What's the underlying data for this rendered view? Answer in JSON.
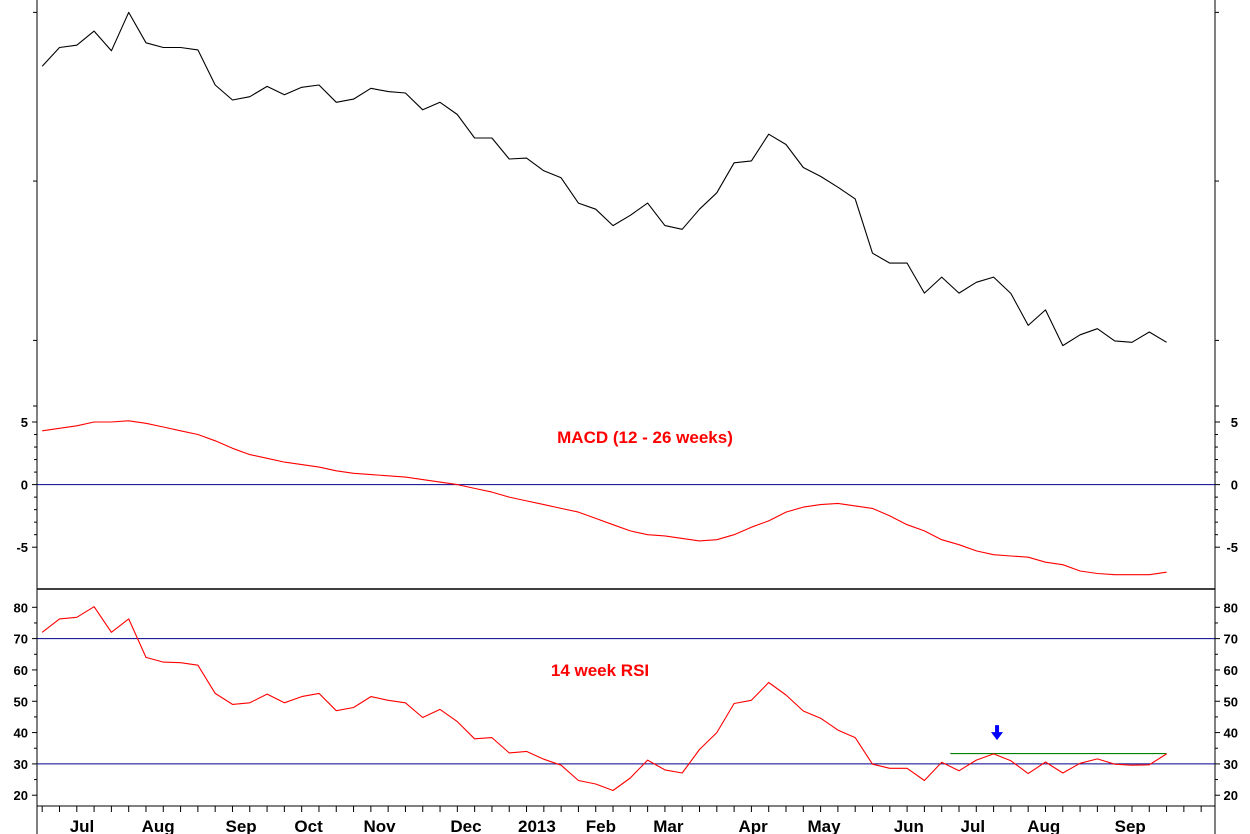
{
  "colors": {
    "price_line": "#000000",
    "indicator_line": "#ff0000",
    "reference_line": "#00008b",
    "support_line": "#008000",
    "marker": "#0000ff",
    "frame": "#000000"
  },
  "chart_data": [
    {
      "type": "line",
      "panel": "price",
      "title": "",
      "x": [
        0,
        1,
        2,
        3,
        4,
        5,
        6,
        7,
        8,
        9,
        10,
        11,
        12,
        13,
        14,
        15,
        16,
        17,
        18,
        19,
        20,
        21,
        22,
        23,
        24,
        25,
        26,
        27,
        28,
        29,
        30,
        31,
        32,
        33,
        34,
        35,
        36,
        37,
        38,
        39,
        40,
        41,
        42,
        43,
        44,
        45,
        46,
        47,
        48,
        49,
        50,
        51,
        52,
        53,
        54,
        55,
        56,
        57,
        58,
        59,
        60,
        61,
        62,
        63,
        64,
        65
      ],
      "series": [
        {
          "values": [
            72.5,
            76.5,
            77,
            80,
            75.8,
            84,
            77.5,
            76.5,
            76.5,
            76,
            68.5,
            65.3,
            66,
            68.2,
            66.4,
            68,
            68.5,
            64.8,
            65.5,
            67.8,
            67.1,
            66.8,
            63.2,
            64.8,
            62.2,
            57.2,
            57.2,
            52.7,
            52.9,
            50.2,
            48.7,
            43.3,
            42,
            38.5,
            40.7,
            43.3,
            38.5,
            37.7,
            42,
            45.5,
            51.9,
            52.3,
            58,
            55.8,
            50.9,
            49,
            46.7,
            44.2,
            32.6,
            30.5,
            30.5,
            24.1,
            27.5,
            24.1,
            26.4,
            27.5,
            24,
            17.2,
            20.5,
            12.9,
            15.2,
            16.5,
            13.9,
            13.6,
            15.8,
            13.6
          ]
        }
      ],
      "xlim": [
        -0.3,
        67.8
      ],
      "ylim": [
        0,
        86
      ],
      "grid": false
    },
    {
      "type": "line",
      "panel": "macd",
      "title": "MACD (12 - 26 weeks)",
      "x": [
        0,
        1,
        2,
        3,
        4,
        5,
        6,
        7,
        8,
        9,
        10,
        11,
        12,
        13,
        14,
        15,
        16,
        17,
        18,
        19,
        20,
        21,
        22,
        23,
        24,
        25,
        26,
        27,
        28,
        29,
        30,
        31,
        32,
        33,
        34,
        35,
        36,
        37,
        38,
        39,
        40,
        41,
        42,
        43,
        44,
        45,
        46,
        47,
        48,
        49,
        50,
        51,
        52,
        53,
        54,
        55,
        56,
        57,
        58,
        59,
        60,
        61,
        62,
        63,
        64,
        65
      ],
      "series": [
        {
          "values": [
            4.3,
            4.5,
            4.7,
            5,
            5,
            5.1,
            4.9,
            4.6,
            4.3,
            4,
            3.5,
            2.9,
            2.4,
            2.1,
            1.8,
            1.6,
            1.4,
            1.1,
            0.9,
            0.8,
            0.7,
            0.6,
            0.4,
            0.2,
            0,
            -0.3,
            -0.6,
            -1,
            -1.3,
            -1.6,
            -1.9,
            -2.2,
            -2.7,
            -3.2,
            -3.7,
            -4,
            -4.1,
            -4.3,
            -4.5,
            -4.4,
            -4,
            -3.4,
            -2.9,
            -2.2,
            -1.8,
            -1.6,
            -1.5,
            -1.7,
            -1.9,
            -2.5,
            -3.2,
            -3.7,
            -4.4,
            -4.8,
            -5.3,
            -5.6,
            -5.7,
            -5.8,
            -6.2,
            -6.4,
            -6.9,
            -7.1,
            -7.2,
            -7.2,
            -7.2,
            -7
          ]
        }
      ],
      "reference_lines": [
        0
      ],
      "y_ticks": [
        "5",
        "0",
        "-5"
      ],
      "ylim": [
        -8.1,
        5.8
      ],
      "grid": false
    },
    {
      "type": "line",
      "panel": "rsi",
      "title": "14 week RSI",
      "x": [
        0,
        1,
        2,
        3,
        4,
        5,
        6,
        7,
        8,
        9,
        10,
        11,
        12,
        13,
        14,
        15,
        16,
        17,
        18,
        19,
        20,
        21,
        22,
        23,
        24,
        25,
        26,
        27,
        28,
        29,
        30,
        31,
        32,
        33,
        34,
        35,
        36,
        37,
        38,
        39,
        40,
        41,
        42,
        43,
        44,
        45,
        46,
        47,
        48,
        49,
        50,
        51,
        52,
        53,
        54,
        55,
        56,
        57,
        58,
        59,
        60,
        61,
        62,
        63,
        64,
        65
      ],
      "series": [
        {
          "values": [
            72,
            76.3,
            76.8,
            80.2,
            72,
            76.3,
            64,
            62.5,
            62.3,
            61.5,
            52.5,
            49,
            49.5,
            52.3,
            49.5,
            51.5,
            52.5,
            47,
            48,
            51.5,
            50.3,
            49.5,
            44.8,
            47.4,
            43.5,
            38,
            38.4,
            33.5,
            34,
            31.5,
            29.6,
            24.7,
            23.6,
            21.5,
            25.5,
            31.2,
            28.1,
            27.1,
            34.6,
            40,
            49.3,
            50.3,
            56,
            52,
            46.9,
            44.6,
            40.8,
            38.4,
            29.9,
            28.6,
            28.6,
            24.7,
            30.5,
            27.8,
            31.2,
            33.2,
            31,
            26.9,
            30.6,
            27.1,
            30.2,
            31.6,
            29.9,
            29.6,
            29.7,
            33.2
          ]
        }
      ],
      "reference_lines": [
        70,
        30
      ],
      "support_line": {
        "value": 33.3,
        "x_start": 52.5,
        "x_end": 65
      },
      "marker": {
        "type": "arrow-down",
        "x": 55.2,
        "y": 39.5
      },
      "y_ticks": [
        "80",
        "70",
        "60",
        "50",
        "40",
        "30",
        "20"
      ],
      "ylim": [
        17.2,
        85.2
      ],
      "grid": false
    }
  ],
  "x_axis": {
    "labels": [
      {
        "text": "Jul",
        "x": 2.3
      },
      {
        "text": "Aug",
        "x": 6.7
      },
      {
        "text": "Sep",
        "x": 11.5
      },
      {
        "text": "Oct",
        "x": 15.4
      },
      {
        "text": "Nov",
        "x": 19.5
      },
      {
        "text": "Dec",
        "x": 24.5
      },
      {
        "text": "2013",
        "x": 28.6
      },
      {
        "text": "Feb",
        "x": 32.3
      },
      {
        "text": "Mar",
        "x": 36.2
      },
      {
        "text": "Apr",
        "x": 41.1
      },
      {
        "text": "May",
        "x": 45.2
      },
      {
        "text": "Jun",
        "x": 50.1
      },
      {
        "text": "Jul",
        "x": 53.8
      },
      {
        "text": "Aug",
        "x": 57.9
      },
      {
        "text": "Sep",
        "x": 62.9
      }
    ]
  }
}
